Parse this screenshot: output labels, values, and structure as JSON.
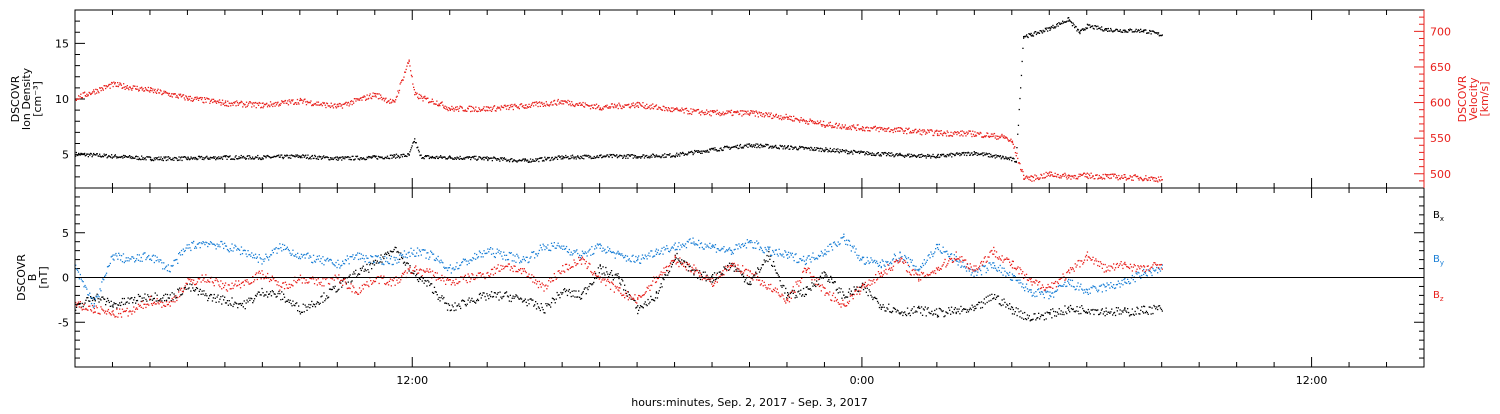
{
  "colors": {
    "black": "#000000",
    "red": "#e8201c",
    "blue": "#1a7fd6"
  },
  "xaxis": {
    "ticklabels": [
      "12:00",
      "0:00",
      "12:00"
    ],
    "title": "hours:minutes, Sep.  2, 2017 - Sep.  3, 2017",
    "range_hours": [
      3,
      39
    ],
    "major_hours": [
      12,
      24,
      36
    ],
    "minor_step_hours": 1
  },
  "chart_data": [
    {
      "type": "scatter",
      "panel": "plasma",
      "ylabel_left": [
        "DSCOVR",
        "Ion Density",
        "[cm⁻³]"
      ],
      "ylabel_right": [
        "DSCOVR",
        "Velocity",
        "[km/s]"
      ],
      "ylim_left": [
        2,
        18
      ],
      "ylim_right": [
        480,
        730
      ],
      "yticks_left": [
        5,
        10,
        15
      ],
      "yticks_right": [
        500,
        550,
        600,
        650,
        700
      ],
      "yticklabels_left": [
        "5",
        "10",
        "15"
      ],
      "yticklabels_right": [
        "500",
        "550",
        "600",
        "650",
        "700"
      ],
      "series": [
        {
          "axis": "left",
          "color": "black",
          "x": [
            3,
            4,
            5,
            6,
            7,
            8,
            9,
            10,
            11,
            11.5,
            11.9,
            12.05,
            12.2,
            12.5,
            13,
            14,
            15,
            16,
            17,
            18,
            19,
            20,
            21,
            22,
            23,
            24,
            25,
            26,
            27,
            27.9,
            28.1,
            28.3,
            28.5,
            29,
            29.5,
            29.8,
            30,
            30.5,
            31,
            31.5,
            32,
            32.5,
            33,
            33.5,
            34,
            34.5,
            35,
            35.5,
            36,
            36.5,
            37,
            37.5,
            38,
            38.5,
            38.9
          ],
          "y": [
            5.1,
            4.9,
            4.7,
            4.7,
            4.8,
            4.8,
            4.9,
            4.7,
            4.8,
            4.9,
            5.0,
            6.4,
            4.9,
            4.8,
            4.8,
            4.7,
            4.5,
            4.8,
            4.9,
            4.9,
            5.0,
            5.5,
            5.9,
            5.7,
            5.5,
            5.2,
            5.0,
            4.9,
            5.2,
            4.7,
            4.5,
            15.7,
            15.8,
            16.4,
            17.2,
            16.0,
            16.6,
            16.3,
            16.2,
            16.2,
            15.8,
            null,
            null,
            null,
            null,
            null,
            null,
            null,
            null,
            null,
            null,
            null,
            null,
            null,
            null
          ]
        },
        {
          "axis": "left",
          "color": "black",
          "note": "points near end",
          "x": [
            24.0,
            25.0,
            26.0,
            27.0,
            27.9,
            28.0,
            28.6,
            29.0,
            30.0,
            31.0,
            32.0,
            33.0,
            34.0,
            35.0,
            35.5,
            36.0,
            37.0,
            38.0,
            38.9,
            39.0,
            23.8,
            12.0,
            11.95
          ],
          "y": [
            5.1,
            5.0,
            4.9,
            5.3,
            4.5,
            null,
            null,
            null,
            null,
            null,
            null,
            null,
            null,
            null,
            null,
            null,
            null,
            null,
            null,
            null,
            null,
            null,
            null
          ]
        },
        {
          "axis": "right",
          "color": "red",
          "x": [
            3,
            4,
            5,
            6,
            7,
            8,
            9,
            10,
            11,
            11.5,
            11.9,
            12.05,
            12.3,
            12.7,
            13,
            14,
            15,
            16,
            17,
            18,
            19,
            20,
            21,
            22,
            23,
            24,
            25,
            26,
            27,
            27.8,
            28.0,
            28.3,
            28.5,
            29,
            29.5,
            30,
            30.5,
            31,
            31.5,
            32,
            32.5,
            33,
            33.5,
            34,
            34.5,
            35,
            35.5,
            36,
            36.5,
            37,
            37.5,
            38,
            38.5,
            38.9
          ],
          "y": [
            607,
            626,
            618,
            607,
            600,
            597,
            603,
            595,
            612,
            600,
            660,
            612,
            606,
            600,
            592,
            592,
            596,
            602,
            594,
            598,
            590,
            586,
            586,
            580,
            570,
            565,
            562,
            558,
            557,
            552,
            545,
            497,
            494,
            500,
            497,
            498,
            497,
            496,
            495,
            493,
            null,
            null,
            null,
            null,
            null,
            null,
            null,
            null,
            null,
            null,
            null,
            null,
            null,
            null
          ]
        }
      ]
    },
    {
      "type": "scatter",
      "panel": "magnetic",
      "ylabel_left": [
        "DSCOVR",
        "B",
        "[nT]"
      ],
      "ylim": [
        -10,
        10
      ],
      "yticks": [
        -5,
        0,
        5
      ],
      "yticklabels": [
        "-5",
        "0",
        "5"
      ],
      "zero_line": true,
      "legend_position": "right",
      "legend": [
        "B",
        "B",
        "B"
      ],
      "legend_subscripts": [
        "x",
        "y",
        "z"
      ],
      "series": [
        {
          "name": "B",
          "subscript": "x",
          "color": "black",
          "x": [
            3,
            3.5,
            4,
            4.5,
            5,
            5.5,
            6,
            6.5,
            7,
            7.5,
            8,
            8.5,
            9,
            9.5,
            10,
            10.5,
            11,
            11.5,
            12,
            12.5,
            13,
            13.5,
            14,
            14.5,
            15,
            15.5,
            16,
            16.5,
            17,
            17.5,
            18,
            18.5,
            19,
            19.5,
            20,
            20.5,
            21,
            21.5,
            22,
            22.5,
            23,
            23.5,
            24,
            24.5,
            25,
            25.5,
            26,
            26.5,
            27,
            27.5,
            28,
            28.5,
            29,
            29.5,
            30,
            30.5,
            31,
            31.5,
            32
          ],
          "y": [
            -3.5,
            -2.0,
            -3.0,
            -2.5,
            -2.0,
            -2.2,
            -1.0,
            -2.0,
            -2.5,
            -3.0,
            -1.5,
            -2.0,
            -3.5,
            -2.5,
            -1.0,
            0.5,
            1.5,
            3.5,
            0.5,
            -1.0,
            -3.5,
            -2.5,
            -2.0,
            -2.0,
            -2.5,
            -3.5,
            -1.5,
            -2.0,
            1.0,
            0.0,
            -3.5,
            -2.0,
            2.5,
            0.5,
            0.0,
            1.5,
            -0.5,
            2.5,
            -2.0,
            -1.5,
            0.5,
            -2.0,
            -1.0,
            -3.0,
            -3.8,
            -3.6,
            -3.9,
            -3.7,
            -3.5,
            -2.0,
            -3.5,
            -4.5,
            -4.0,
            -3.5,
            -3.5,
            -3.7,
            -3.8,
            -3.6,
            -3.4
          ]
        },
        {
          "name": "B",
          "subscript": "y",
          "color": "blue",
          "x": [
            3,
            3.5,
            4,
            4.5,
            5,
            5.5,
            6,
            6.5,
            7,
            7.5,
            8,
            8.5,
            9,
            9.5,
            10,
            10.5,
            11,
            11.5,
            12,
            12.5,
            13,
            13.5,
            14,
            14.5,
            15,
            15.5,
            16,
            16.5,
            17,
            17.5,
            18,
            18.5,
            19,
            19.5,
            20,
            20.5,
            21,
            21.5,
            22,
            22.5,
            23,
            23.5,
            24,
            24.5,
            25,
            25.5,
            26,
            26.5,
            27,
            27.5,
            28,
            28.5,
            29,
            29.5,
            30,
            30.5,
            31,
            31.5,
            32
          ],
          "y": [
            1.0,
            -3.0,
            2.5,
            2.0,
            2.5,
            1.0,
            3.5,
            4.0,
            3.5,
            3.0,
            2.0,
            3.5,
            2.5,
            2.0,
            1.5,
            2.5,
            2.0,
            2.0,
            3.0,
            2.5,
            1.0,
            2.0,
            3.0,
            2.5,
            2.0,
            3.5,
            3.5,
            2.5,
            3.5,
            2.5,
            2.0,
            3.0,
            3.5,
            4.0,
            3.5,
            3.0,
            4.0,
            3.0,
            2.5,
            2.0,
            3.0,
            4.5,
            2.0,
            1.5,
            2.5,
            1.0,
            3.5,
            2.0,
            0.5,
            1.5,
            0.0,
            -1.5,
            -2.0,
            -0.5,
            -1.5,
            -1.0,
            -0.5,
            0.5,
            1.0
          ]
        },
        {
          "name": "B",
          "subscript": "z",
          "color": "red",
          "x": [
            3,
            3.5,
            4,
            4.5,
            5,
            5.5,
            6,
            6.5,
            7,
            7.5,
            8,
            8.5,
            9,
            9.5,
            10,
            10.5,
            11,
            11.5,
            12,
            12.5,
            13,
            13.5,
            14,
            14.5,
            15,
            15.5,
            16,
            16.5,
            17,
            17.5,
            18,
            18.5,
            19,
            19.5,
            20,
            20.5,
            21,
            21.5,
            22,
            22.5,
            23,
            23.5,
            24,
            24.5,
            25,
            25.5,
            26,
            26.5,
            27,
            27.5,
            28,
            28.5,
            29,
            29.5,
            30,
            30.5,
            31,
            31.5,
            32
          ],
          "y": [
            -3.0,
            -3.5,
            -4.0,
            -3.8,
            -2.5,
            -3.0,
            -0.5,
            0.0,
            -1.0,
            -0.5,
            0.5,
            -1.0,
            0.0,
            -0.5,
            0.0,
            -1.5,
            0.0,
            -0.5,
            1.0,
            0.5,
            -0.5,
            0.0,
            0.5,
            1.5,
            0.5,
            -1.0,
            1.0,
            2.0,
            0.0,
            -1.5,
            -2.5,
            0.0,
            2.0,
            1.0,
            -0.5,
            1.5,
            0.5,
            -1.0,
            -2.5,
            1.0,
            -1.5,
            -3.0,
            -1.0,
            0.5,
            2.0,
            0.0,
            1.0,
            2.5,
            1.0,
            3.0,
            1.5,
            -0.5,
            -1.0,
            0.5,
            2.5,
            1.0,
            1.5,
            1.0,
            1.5
          ]
        }
      ]
    }
  ]
}
